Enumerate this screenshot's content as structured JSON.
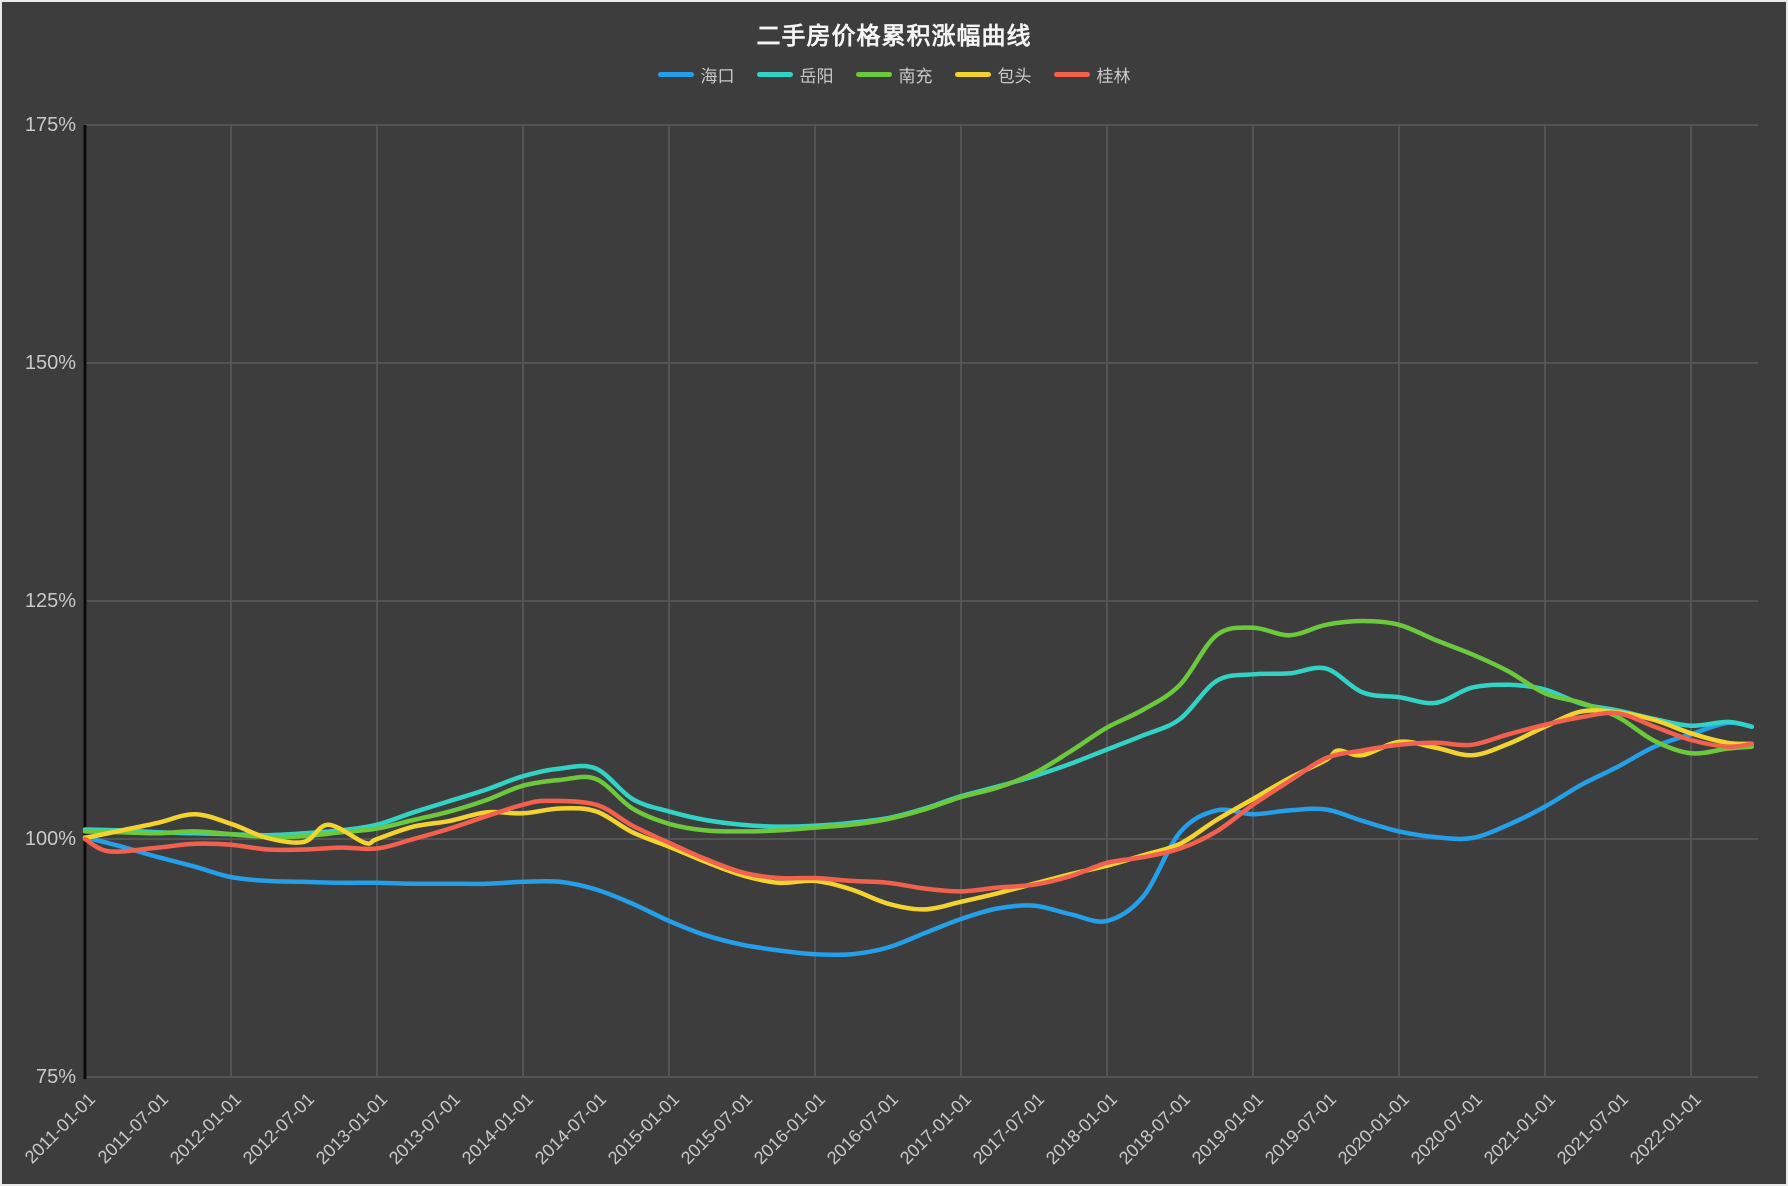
{
  "page": {
    "background": "#3d3d3d",
    "grid_color": "#545454",
    "axis_color": "#0a0a0a",
    "label_color": "#c9c9c9"
  },
  "chart": {
    "title": "二手房价格累积涨幅曲线",
    "legend_items": [
      {
        "label": "海口",
        "color": "#259fe8"
      },
      {
        "label": "岳阳",
        "color": "#32d3c5"
      },
      {
        "label": "南充",
        "color": "#6cc83c"
      },
      {
        "label": "包头",
        "color": "#f3d32f"
      },
      {
        "label": "桂林",
        "color": "#f2614e"
      }
    ],
    "y_axis_labels": [
      "175%",
      "150%",
      "125%",
      "100%",
      "75%"
    ],
    "x_axis_labels": [
      "2011-01-01",
      "2011-07-01",
      "2012-01-01",
      "2012-07-01",
      "2013-01-01",
      "2013-07-01",
      "2014-01-01",
      "2014-07-01",
      "2015-01-01",
      "2015-07-01",
      "2016-01-01",
      "2016-07-01",
      "2017-01-01",
      "2017-07-01",
      "2018-01-01",
      "2018-07-01",
      "2019-01-01",
      "2019-07-01",
      "2020-01-01",
      "2020-07-01",
      "2021-01-01",
      "2021-07-01",
      "2022-01-01"
    ]
  },
  "chart_data": {
    "type": "line",
    "title": "二手房价格累积涨幅曲线",
    "xlabel": "",
    "ylabel": "",
    "ylim": [
      75,
      175
    ],
    "ytick_step": 25,
    "ytick_format": "percent",
    "x_range": [
      "2011-01",
      "2022-06"
    ],
    "x_unit": "month",
    "grid": true,
    "legend_position": "top",
    "series": [
      {
        "name": "海口",
        "color": "#259fe8",
        "points": [
          [
            "2011-01",
            100.2
          ],
          [
            "2011-04",
            99.2
          ],
          [
            "2011-07",
            98.1
          ],
          [
            "2011-10",
            97.1
          ],
          [
            "2012-01",
            96.0
          ],
          [
            "2012-04",
            95.6
          ],
          [
            "2012-07",
            95.5
          ],
          [
            "2012-10",
            95.4
          ],
          [
            "2013-01",
            95.4
          ],
          [
            "2013-04",
            95.3
          ],
          [
            "2013-07",
            95.3
          ],
          [
            "2013-10",
            95.3
          ],
          [
            "2014-01",
            95.5
          ],
          [
            "2014-04",
            95.5
          ],
          [
            "2014-07",
            94.7
          ],
          [
            "2014-10",
            93.2
          ],
          [
            "2015-01",
            91.4
          ],
          [
            "2015-04",
            89.9
          ],
          [
            "2015-07",
            88.9
          ],
          [
            "2015-10",
            88.3
          ],
          [
            "2016-01",
            87.9
          ],
          [
            "2016-04",
            87.9
          ],
          [
            "2016-07",
            88.6
          ],
          [
            "2016-10",
            90.1
          ],
          [
            "2017-01",
            91.6
          ],
          [
            "2017-04",
            92.7
          ],
          [
            "2017-07",
            93.0
          ],
          [
            "2017-10",
            92.1
          ],
          [
            "2018-01",
            91.4
          ],
          [
            "2018-04",
            94.0
          ],
          [
            "2018-07",
            100.7
          ],
          [
            "2018-10",
            103.0
          ],
          [
            "2019-01",
            102.6
          ],
          [
            "2019-04",
            103.0
          ],
          [
            "2019-07",
            103.1
          ],
          [
            "2019-10",
            101.9
          ],
          [
            "2020-01",
            100.8
          ],
          [
            "2020-04",
            100.2
          ],
          [
            "2020-07",
            100.1
          ],
          [
            "2020-10",
            101.5
          ],
          [
            "2021-01",
            103.4
          ],
          [
            "2021-04",
            105.7
          ],
          [
            "2021-07",
            107.6
          ],
          [
            "2021-10",
            109.7
          ],
          [
            "2022-01",
            111.0
          ],
          [
            "2022-04",
            112.2
          ],
          [
            "2022-06",
            111.8
          ]
        ]
      },
      {
        "name": "岳阳",
        "color": "#32d3c5",
        "points": [
          [
            "2011-01",
            101.0
          ],
          [
            "2011-04",
            100.9
          ],
          [
            "2011-07",
            100.7
          ],
          [
            "2011-10",
            100.6
          ],
          [
            "2012-01",
            100.5
          ],
          [
            "2012-04",
            100.4
          ],
          [
            "2012-07",
            100.6
          ],
          [
            "2012-10",
            100.9
          ],
          [
            "2013-01",
            101.5
          ],
          [
            "2013-04",
            102.8
          ],
          [
            "2013-07",
            104.0
          ],
          [
            "2013-10",
            105.2
          ],
          [
            "2014-01",
            106.6
          ],
          [
            "2014-04",
            107.4
          ],
          [
            "2014-07",
            107.4
          ],
          [
            "2014-10",
            104.2
          ],
          [
            "2015-01",
            102.9
          ],
          [
            "2015-04",
            102.0
          ],
          [
            "2015-07",
            101.5
          ],
          [
            "2015-10",
            101.3
          ],
          [
            "2016-01",
            101.4
          ],
          [
            "2016-04",
            101.7
          ],
          [
            "2016-07",
            102.2
          ],
          [
            "2016-10",
            103.2
          ],
          [
            "2017-01",
            104.5
          ],
          [
            "2017-04",
            105.5
          ],
          [
            "2017-07",
            106.6
          ],
          [
            "2017-10",
            107.9
          ],
          [
            "2018-01",
            109.4
          ],
          [
            "2018-04",
            110.9
          ],
          [
            "2018-07",
            112.6
          ],
          [
            "2018-10",
            116.6
          ],
          [
            "2019-01",
            117.3
          ],
          [
            "2019-04",
            117.4
          ],
          [
            "2019-07",
            117.9
          ],
          [
            "2019-10",
            115.4
          ],
          [
            "2020-01",
            114.9
          ],
          [
            "2020-04",
            114.3
          ],
          [
            "2020-07",
            115.9
          ],
          [
            "2020-10",
            116.2
          ],
          [
            "2021-01",
            115.7
          ],
          [
            "2021-04",
            114.2
          ],
          [
            "2021-07",
            113.5
          ],
          [
            "2021-10",
            112.6
          ],
          [
            "2022-01",
            111.9
          ],
          [
            "2022-04",
            112.3
          ],
          [
            "2022-06",
            111.8
          ]
        ]
      },
      {
        "name": "南充",
        "color": "#6cc83c",
        "points": [
          [
            "2011-01",
            100.8
          ],
          [
            "2011-04",
            100.7
          ],
          [
            "2011-07",
            100.6
          ],
          [
            "2011-10",
            100.8
          ],
          [
            "2012-01",
            100.5
          ],
          [
            "2012-04",
            100.2
          ],
          [
            "2012-07",
            100.3
          ],
          [
            "2012-10",
            100.7
          ],
          [
            "2013-01",
            101.1
          ],
          [
            "2013-04",
            102.0
          ],
          [
            "2013-07",
            102.9
          ],
          [
            "2013-10",
            104.1
          ],
          [
            "2014-01",
            105.6
          ],
          [
            "2014-04",
            106.2
          ],
          [
            "2014-07",
            106.3
          ],
          [
            "2014-10",
            103.2
          ],
          [
            "2015-01",
            101.6
          ],
          [
            "2015-04",
            100.9
          ],
          [
            "2015-07",
            100.8
          ],
          [
            "2015-10",
            100.9
          ],
          [
            "2016-01",
            101.2
          ],
          [
            "2016-04",
            101.5
          ],
          [
            "2016-07",
            102.1
          ],
          [
            "2016-10",
            103.1
          ],
          [
            "2017-01",
            104.4
          ],
          [
            "2017-04",
            105.4
          ],
          [
            "2017-07",
            106.9
          ],
          [
            "2017-10",
            109.2
          ],
          [
            "2018-01",
            111.7
          ],
          [
            "2018-04",
            113.6
          ],
          [
            "2018-07",
            116.2
          ],
          [
            "2018-10",
            121.4
          ],
          [
            "2019-01",
            122.2
          ],
          [
            "2019-04",
            121.4
          ],
          [
            "2019-07",
            122.5
          ],
          [
            "2019-10",
            122.9
          ],
          [
            "2020-01",
            122.5
          ],
          [
            "2020-04",
            120.9
          ],
          [
            "2020-07",
            119.4
          ],
          [
            "2020-10",
            117.6
          ],
          [
            "2021-01",
            115.3
          ],
          [
            "2021-04",
            114.3
          ],
          [
            "2021-07",
            112.8
          ],
          [
            "2021-10",
            110.3
          ],
          [
            "2022-01",
            109.0
          ],
          [
            "2022-04",
            109.5
          ],
          [
            "2022-06",
            109.7
          ]
        ]
      },
      {
        "name": "包头",
        "color": "#f3d32f",
        "points": [
          [
            "2011-01",
            100.1
          ],
          [
            "2011-04",
            100.9
          ],
          [
            "2011-07",
            101.7
          ],
          [
            "2011-10",
            102.6
          ],
          [
            "2012-01",
            101.6
          ],
          [
            "2012-04",
            100.1
          ],
          [
            "2012-07",
            99.7
          ],
          [
            "2012-09",
            101.5
          ],
          [
            "2012-12",
            99.6
          ],
          [
            "2013-01",
            100.0
          ],
          [
            "2013-04",
            101.3
          ],
          [
            "2013-07",
            101.9
          ],
          [
            "2013-10",
            102.8
          ],
          [
            "2014-01",
            102.7
          ],
          [
            "2014-04",
            103.2
          ],
          [
            "2014-07",
            102.9
          ],
          [
            "2014-10",
            100.7
          ],
          [
            "2015-01",
            99.2
          ],
          [
            "2015-04",
            97.6
          ],
          [
            "2015-07",
            96.2
          ],
          [
            "2015-10",
            95.4
          ],
          [
            "2016-01",
            95.6
          ],
          [
            "2016-04",
            94.7
          ],
          [
            "2016-07",
            93.2
          ],
          [
            "2016-10",
            92.6
          ],
          [
            "2017-01",
            93.4
          ],
          [
            "2017-04",
            94.3
          ],
          [
            "2017-07",
            95.3
          ],
          [
            "2017-10",
            96.3
          ],
          [
            "2018-01",
            97.2
          ],
          [
            "2018-04",
            98.3
          ],
          [
            "2018-07",
            99.5
          ],
          [
            "2018-10",
            102.0
          ],
          [
            "2019-01",
            104.2
          ],
          [
            "2019-04",
            106.4
          ],
          [
            "2019-07",
            108.3
          ],
          [
            "2019-08",
            109.3
          ],
          [
            "2019-10",
            108.8
          ],
          [
            "2020-01",
            110.2
          ],
          [
            "2020-04",
            109.6
          ],
          [
            "2020-07",
            108.8
          ],
          [
            "2020-10",
            110.0
          ],
          [
            "2021-01",
            111.8
          ],
          [
            "2021-04",
            113.4
          ],
          [
            "2021-07",
            113.3
          ],
          [
            "2021-10",
            112.5
          ],
          [
            "2022-01",
            111.1
          ],
          [
            "2022-04",
            110.1
          ],
          [
            "2022-06",
            110.0
          ]
        ]
      },
      {
        "name": "桂林",
        "color": "#f2614e",
        "points": [
          [
            "2011-01",
            100.0
          ],
          [
            "2011-03",
            98.7
          ],
          [
            "2011-07",
            99.1
          ],
          [
            "2011-10",
            99.5
          ],
          [
            "2012-01",
            99.4
          ],
          [
            "2012-04",
            98.9
          ],
          [
            "2012-07",
            98.9
          ],
          [
            "2012-10",
            99.1
          ],
          [
            "2013-01",
            99.0
          ],
          [
            "2013-04",
            100.0
          ],
          [
            "2013-07",
            101.1
          ],
          [
            "2013-10",
            102.4
          ],
          [
            "2014-01",
            103.6
          ],
          [
            "2014-03",
            104.0
          ],
          [
            "2014-07",
            103.6
          ],
          [
            "2014-10",
            101.4
          ],
          [
            "2015-01",
            99.6
          ],
          [
            "2015-04",
            97.9
          ],
          [
            "2015-07",
            96.5
          ],
          [
            "2015-10",
            95.9
          ],
          [
            "2016-01",
            95.9
          ],
          [
            "2016-04",
            95.6
          ],
          [
            "2016-07",
            95.4
          ],
          [
            "2016-10",
            94.8
          ],
          [
            "2017-01",
            94.5
          ],
          [
            "2017-04",
            94.9
          ],
          [
            "2017-07",
            95.2
          ],
          [
            "2017-10",
            96.1
          ],
          [
            "2018-01",
            97.5
          ],
          [
            "2018-04",
            98.1
          ],
          [
            "2018-07",
            99.0
          ],
          [
            "2018-10",
            100.8
          ],
          [
            "2019-01",
            103.6
          ],
          [
            "2019-04",
            106.1
          ],
          [
            "2019-07",
            108.5
          ],
          [
            "2019-10",
            109.3
          ],
          [
            "2020-01",
            109.9
          ],
          [
            "2020-04",
            110.1
          ],
          [
            "2020-07",
            109.9
          ],
          [
            "2020-10",
            111.0
          ],
          [
            "2021-01",
            112.0
          ],
          [
            "2021-04",
            112.8
          ],
          [
            "2021-07",
            113.2
          ],
          [
            "2021-10",
            111.8
          ],
          [
            "2022-01",
            110.4
          ],
          [
            "2022-04",
            109.7
          ],
          [
            "2022-06",
            110.0
          ]
        ]
      }
    ]
  }
}
